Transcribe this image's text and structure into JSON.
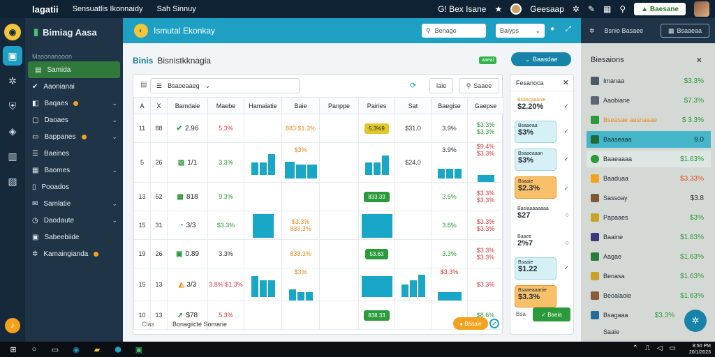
{
  "topbar": {
    "logo": "lagatii",
    "items": [
      "Sensuatlis Ikonnaidy",
      "Sah Sinnuy"
    ],
    "right_text": "G! Bex Isane",
    "profile": "Geesaap",
    "action": "Baesane"
  },
  "sidebar": {
    "brand": "Bimiag Aasa",
    "section": "Masonanooon",
    "items": [
      {
        "label": "Samida"
      },
      {
        "label": "Aaonianai"
      },
      {
        "label": "Baqaes"
      },
      {
        "label": "Daoaes"
      },
      {
        "label": "Bappanes"
      },
      {
        "label": "Baeines"
      },
      {
        "label": "Baomes"
      },
      {
        "label": "Pooados"
      },
      {
        "label": "Samlatie"
      },
      {
        "label": "Daodaute"
      },
      {
        "label": "Sabeebiide"
      },
      {
        "label": "Kamaingianda"
      }
    ]
  },
  "main": {
    "header_title": "Ismutal Ekonkay",
    "search_placeholder": "Benago",
    "select_value": "Baiyps",
    "page_title_1": "Binis",
    "page_title_2": "Bisnistkknagia",
    "badge": "aaeai",
    "primary_button": "Baasdae",
    "filter_value": "Bsaoeaaeg",
    "toolbar_btn1": "Iaie",
    "toolbar_btn2": "Saaee",
    "columns": [
      "A",
      "X",
      "Bamdaie",
      "Maebe",
      "Hamaiatie",
      "Baie",
      "Panppe",
      "Pairies",
      "Sat",
      "Baegise",
      "Gaepse"
    ],
    "rows": [
      {
        "a": "11",
        "x": "88",
        "icon": "check-mark",
        "kpi": "2.96",
        "c3": "5.3%",
        "c5": "883 $1.3%",
        "chip": "5.3%9",
        "c7": "$31.0",
        "c8": "3.9%",
        "c9": "$3.3% $3.3%"
      },
      {
        "a": "5",
        "x": "26",
        "icon": "k-mark",
        "kpi": "1/1",
        "c3": "3.3%",
        "c5": "$3%",
        "chip": "",
        "c7": "$24.0",
        "c8": "3.9%",
        "c9": "$9.4% $3.3%"
      },
      {
        "a": "13",
        "x": "52",
        "icon": "w-mark",
        "kpi": "818",
        "c3": "9.3%",
        "c5": "",
        "chip": "833.33",
        "c7": "",
        "c8": "3.6%",
        "c9": "$3.3% $3.3%"
      },
      {
        "a": "15",
        "x": "31",
        "icon": "c-mark",
        "kpi": "3/3",
        "c3": "$3.3%",
        "c5": "$3.3% 833.3%",
        "chip": "",
        "c7": "",
        "c8": "3.8%",
        "c9": "$3.3% $3.3%"
      },
      {
        "a": "19",
        "x": "26",
        "icon": "b-mark",
        "kpi": "0.89",
        "c3": "3.3%",
        "c5": "833.3%",
        "chip": "53.63",
        "c7": "",
        "c8": "3.3%",
        "c9": "$3.3% $3.3%"
      },
      {
        "a": "15",
        "x": "13",
        "icon": "leaf-mark",
        "kpi": "3/3",
        "c3": "3.8% $1.3%",
        "c5": "$3%",
        "chip": "",
        "c7": "",
        "c8": "$3.3%",
        "c9": "$3.3%"
      },
      {
        "a": "10",
        "x": "13",
        "icon": "arrow-mark",
        "kpi": "$78",
        "c3": "5.3%",
        "c5": "",
        "chip": "838.33",
        "c7": "",
        "c8": "",
        "c9": "$8.6%"
      }
    ],
    "footer_left": "Clas",
    "footer_mid": "Bonagiicte Somarie",
    "footer_button": "Bsaaie"
  },
  "notifications": {
    "title": "Fesanoca",
    "cards": [
      {
        "label": "Bsaecaaanie",
        "value": "$2.20%",
        "style": "wh"
      },
      {
        "label": "Bsaaeaa",
        "value": "$3%",
        "style": "cy"
      },
      {
        "label": "Bsaaeaaan",
        "value": "$3%",
        "style": "cy"
      },
      {
        "label": "Bsaaie",
        "value": "$2.3%",
        "style": "or"
      },
      {
        "label": "Basiaaaaaaaa",
        "value": "$27",
        "style": "wh"
      },
      {
        "label": "Baaee",
        "value": "2%7",
        "style": "wh"
      },
      {
        "label": "Bsaaie",
        "value": "$1.22",
        "style": "cy"
      },
      {
        "label": "Bsaaeaaanie",
        "value": "$3.3%",
        "style": "or"
      }
    ],
    "footer_label": "Bsa",
    "footer_button": "Baeia"
  },
  "drawer": {
    "head_button": "Bsaaeaa",
    "head_label": "Bsnio Basaee",
    "title": "Biesaions",
    "items": [
      {
        "label": "Imanaa",
        "value": "$3.3%",
        "color": "#2a9a3a"
      },
      {
        "label": "Aaobiane",
        "value": "$7.3%",
        "color": "#2a9a3a"
      },
      {
        "label": "Bseasae aasnaaae",
        "value": "$ 3.3%",
        "color": "#2a9a3a"
      },
      {
        "label": "Baaseaaa",
        "value": "9.0",
        "color": "#1f2a33"
      },
      {
        "label": "Baaeaaaa",
        "value": "$1.63%",
        "color": "#2a9a3a"
      },
      {
        "label": "Baaduaa",
        "value": "$3.33%",
        "color": "#e0541f"
      },
      {
        "label": "Sassoay",
        "value": "$3.8",
        "color": "#1f2a33"
      },
      {
        "label": "Papaaes",
        "value": "$3%",
        "color": "#2a9a3a"
      },
      {
        "label": "Baaine",
        "value": "$1.83%",
        "color": "#2a9a3a"
      },
      {
        "label": "Aagae",
        "value": "$1.63%",
        "color": "#2a9a3a"
      },
      {
        "label": "Benasa",
        "value": "$1.63%",
        "color": "#2a9a3a"
      },
      {
        "label": "Beoalaoie",
        "value": "$1.63%",
        "color": "#2a9a3a"
      },
      {
        "label": "Bsagaaa",
        "value": "$3.3%",
        "color": "#2a9a3a"
      },
      {
        "label": "Saaie",
        "value": "",
        "color": "#1f2a33"
      }
    ]
  },
  "taskbar": {
    "clock_time": "8:50 PM",
    "clock_date": "20/1/2023"
  }
}
